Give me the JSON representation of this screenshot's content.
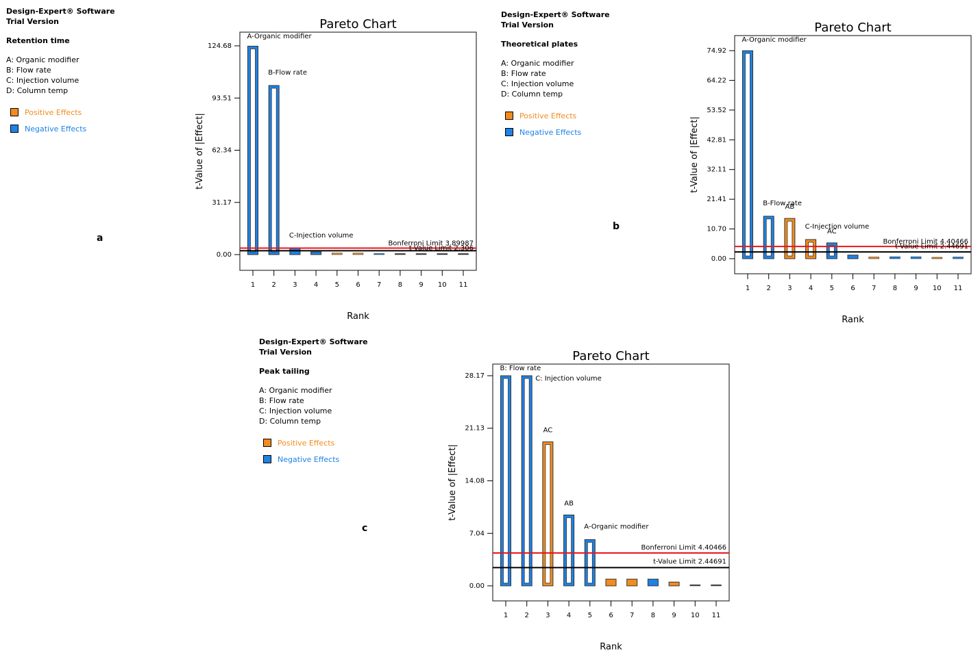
{
  "software": "Design-Expert® Software",
  "version": "Trial Version",
  "factors": [
    "A: Organic modifier",
    "B: Flow rate",
    "C: Injection volume",
    "D: Column temp"
  ],
  "legend": {
    "positive": {
      "label": "Positive Effects",
      "color": "#F28C1E"
    },
    "negative": {
      "label": "Negative Effects",
      "color": "#1E82E6"
    }
  },
  "colors": {
    "positive": "#F28C1E",
    "negative": "#1E82E6",
    "bonferroni_line": "#E8161B",
    "tvalue_line": "#000000"
  },
  "panels": [
    {
      "letter": "a",
      "response": "Retention time"
    },
    {
      "letter": "b",
      "response": "Theoretical plates"
    },
    {
      "letter": "c",
      "response": "Peak tailing"
    }
  ],
  "chart_data": [
    {
      "type": "bar",
      "title": "Pareto Chart",
      "xlabel": "Rank",
      "ylabel": "t-Value of |Effect|",
      "categories": [
        "1",
        "2",
        "3",
        "4",
        "5",
        "6",
        "7",
        "8",
        "9",
        "10",
        "11"
      ],
      "yticks": [
        "0.00",
        "31.17",
        "62.34",
        "93.51",
        "124.68"
      ],
      "ylim": [
        0,
        124.68
      ],
      "values": [
        124.5,
        101.0,
        3.7,
        1.6,
        0.9,
        0.9,
        0.6,
        0.2,
        0.2,
        0.2,
        0.2
      ],
      "signs": [
        "negative",
        "negative",
        "negative",
        "negative",
        "positive",
        "positive",
        "negative",
        "negative",
        "negative",
        "negative",
        "negative"
      ],
      "bar_labels": [
        {
          "rank": 1,
          "text": "A-Organic modifier"
        },
        {
          "rank": 2,
          "text": "B-Flow rate"
        },
        {
          "rank": 3,
          "text": "C-Injection volume"
        }
      ],
      "bonferroni": {
        "value": 3.89987,
        "label": "Bonferroni Limit 3.89987"
      },
      "t_limit": {
        "value": 2.306,
        "label": "t-Value Limit 2.306"
      },
      "grid": false
    },
    {
      "type": "bar",
      "title": "Pareto Chart",
      "xlabel": "Rank",
      "ylabel": "t-Value of |Effect|",
      "categories": [
        "1",
        "2",
        "3",
        "4",
        "5",
        "6",
        "7",
        "8",
        "9",
        "10",
        "11"
      ],
      "yticks": [
        "0.00",
        "10.70",
        "21.41",
        "32.11",
        "42.81",
        "53.52",
        "64.22",
        "74.92"
      ],
      "ylim": [
        0,
        74.92
      ],
      "values": [
        74.9,
        15.3,
        14.5,
        6.9,
        5.7,
        1.3,
        0.6,
        0.7,
        0.7,
        0.5,
        0.6
      ],
      "signs": [
        "negative",
        "negative",
        "positive",
        "positive",
        "negative",
        "negative",
        "positive",
        "negative",
        "negative",
        "positive",
        "negative"
      ],
      "bar_labels": [
        {
          "rank": 1,
          "text": "A-Organic modifier"
        },
        {
          "rank": 2,
          "text": "B-Flow rate"
        },
        {
          "rank": 3,
          "text": "AB"
        },
        {
          "rank": 4,
          "text": "C-Injection volume"
        },
        {
          "rank": 5,
          "text": "AC"
        }
      ],
      "bonferroni": {
        "value": 4.40466,
        "label": "Bonferroni Limit 4.40466"
      },
      "t_limit": {
        "value": 2.44691,
        "label": "t-Value Limit 2.44691"
      },
      "grid": false
    },
    {
      "type": "bar",
      "title": "Pareto Chart",
      "xlabel": "Rank",
      "ylabel": "t-Value of |Effect|",
      "categories": [
        "1",
        "2",
        "3",
        "4",
        "5",
        "6",
        "7",
        "8",
        "9",
        "10",
        "11"
      ],
      "yticks": [
        "0.00",
        "7.04",
        "14.08",
        "21.13",
        "28.17"
      ],
      "ylim": [
        0,
        28.17
      ],
      "values": [
        28.17,
        28.17,
        19.3,
        9.5,
        6.2,
        0.9,
        0.9,
        0.9,
        0.5,
        0.05,
        0.05
      ],
      "signs": [
        "negative",
        "negative",
        "positive",
        "negative",
        "negative",
        "positive",
        "positive",
        "negative",
        "positive",
        "negative",
        "negative"
      ],
      "bar_labels": [
        {
          "rank": 1,
          "text": "B: Flow rate"
        },
        {
          "rank": 2,
          "text": "C: Injection volume"
        },
        {
          "rank": 3,
          "text": "AC"
        },
        {
          "rank": 4,
          "text": "AB"
        },
        {
          "rank": 5,
          "text": "A-Organic modifier"
        }
      ],
      "bonferroni": {
        "value": 4.40466,
        "label": "Bonferroni Limit 4.40466"
      },
      "t_limit": {
        "value": 2.44691,
        "label": "t-Value Limit 2.44691"
      },
      "grid": false
    }
  ]
}
